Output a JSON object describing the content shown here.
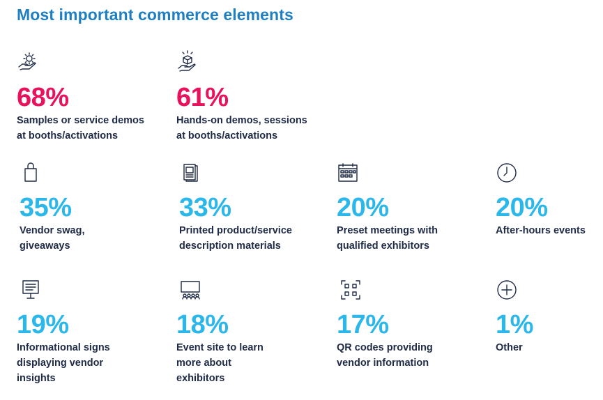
{
  "title": "Most important commerce elements",
  "colors": {
    "title": "#1f7fc0",
    "pink": "#e8115b",
    "blue": "#2cb7ea",
    "text": "#1e2a46"
  },
  "stats": [
    {
      "icon": "gear-hand-icon",
      "percent": "68%",
      "label": "Samples or service demos\nat booths/activations"
    },
    {
      "icon": "box-hand-icon",
      "percent": "61%",
      "label": "Hands-on demos, sessions\nat booths/activations"
    },
    {
      "icon": "shopping-bag-icon",
      "percent": "35%",
      "label": "Vendor swag,\ngiveaways"
    },
    {
      "icon": "printed-pages-icon",
      "percent": "33%",
      "label": "Printed product/service\ndescription materials"
    },
    {
      "icon": "calendar-icon",
      "percent": "20%",
      "label": "Preset meetings with\nqualified exhibitors"
    },
    {
      "icon": "clock-icon",
      "percent": "20%",
      "label": "After-hours events"
    },
    {
      "icon": "signboard-icon",
      "percent": "19%",
      "label": "Informational signs\ndisplaying vendor\ninsights"
    },
    {
      "icon": "presentation-audience-icon",
      "percent": "18%",
      "label": "Event site to learn\nmore about\nexhibitors"
    },
    {
      "icon": "qr-code-icon",
      "percent": "17%",
      "label": "QR codes providing\nvendor information"
    },
    {
      "icon": "plus-circle-icon",
      "percent": "1%",
      "label": "Other"
    }
  ]
}
